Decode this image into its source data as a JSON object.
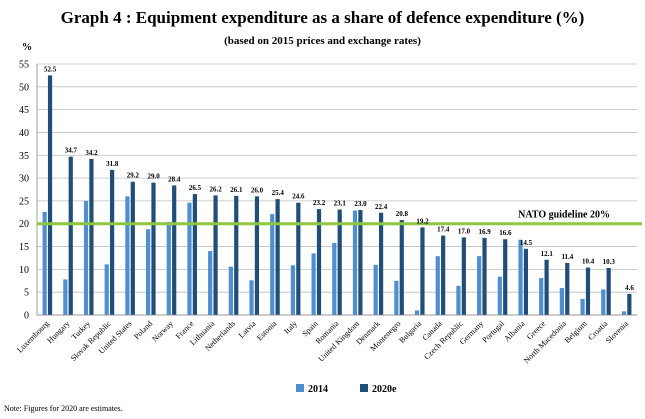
{
  "title": "Graph 4 : Equipment expenditure as a share of defence expenditure (%)",
  "subtitle": "(based on 2015 prices and exchange rates)",
  "note": "Note: Figures for 2020 are estimates.",
  "colors": {
    "s2014": "#4f8fd0",
    "s2020": "#1f4e79",
    "guideline": "#8dc63f",
    "grid": "#bfbfbf"
  },
  "chart_data": {
    "type": "bar",
    "ylabel": "%",
    "ylim": [
      0,
      55
    ],
    "yticks": [
      0,
      5,
      10,
      15,
      20,
      25,
      30,
      35,
      40,
      45,
      50,
      55
    ],
    "grid": true,
    "legend_position": "bottom",
    "categories": [
      "Luxembourg",
      "Hungary",
      "Turkey",
      "Slovak Republic",
      "United States",
      "Poland",
      "Norway",
      "France",
      "Lithuania",
      "Netherlands",
      "Latvia",
      "Estonia",
      "Italy",
      "Spain",
      "Romania",
      "United Kingdom",
      "Denmark",
      "Montenegro",
      "Bulgaria",
      "Canada",
      "Czech Republic",
      "Germany",
      "Portugal",
      "Albania",
      "Greece",
      "North Macedonia",
      "Belgium",
      "Croatia",
      "Slovenia"
    ],
    "series": [
      {
        "name": "2014",
        "values": [
          22.6,
          7.8,
          25.0,
          11.1,
          26.0,
          18.8,
          20.4,
          24.6,
          14.0,
          10.6,
          7.6,
          22.1,
          10.9,
          13.5,
          15.8,
          22.9,
          11.0,
          7.5,
          1.0,
          12.9,
          6.4,
          12.9,
          8.4,
          16.5,
          8.1,
          5.9,
          3.5,
          5.6,
          0.8
        ]
      },
      {
        "name": "2020e",
        "values": [
          52.5,
          34.7,
          34.2,
          31.8,
          29.2,
          29.0,
          28.4,
          26.5,
          26.2,
          26.1,
          26.0,
          25.4,
          24.6,
          23.2,
          23.1,
          23.0,
          22.4,
          20.8,
          19.2,
          17.4,
          17.0,
          16.9,
          16.6,
          14.5,
          12.1,
          11.4,
          10.4,
          10.3,
          4.6
        ]
      }
    ],
    "data_labels": [
      "52.5",
      "34.7",
      "34.2",
      "31.8",
      "29.2",
      "29.0",
      "28.4",
      "26.5",
      "26.2",
      "26.1",
      "26.0",
      "25.4",
      "24.6",
      "23.2",
      "23.1",
      "23.0",
      "22.4",
      "20.8",
      "19.2",
      "17.4",
      "17.0",
      "16.9",
      "16.6",
      "14.5",
      "12.1",
      "11.4",
      "10.4",
      "10.3",
      "4.6"
    ],
    "guideline": {
      "value": 20,
      "label": "NATO guideline 20%"
    }
  }
}
